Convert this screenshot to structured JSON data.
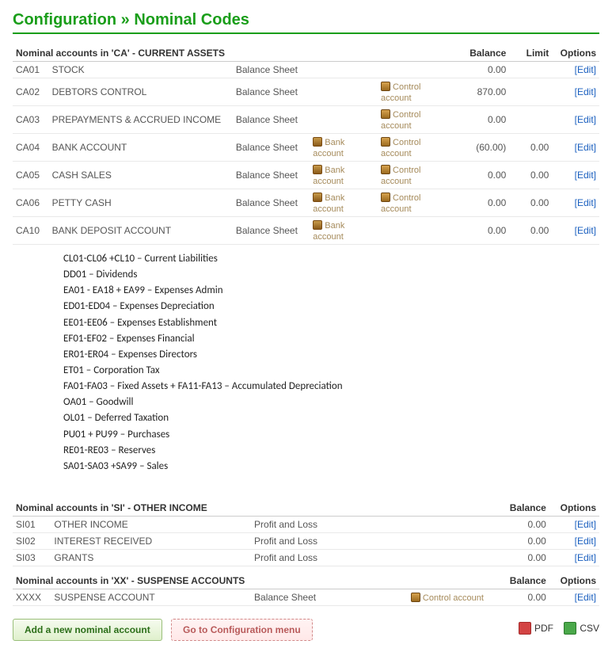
{
  "title_prefix": "Configuration",
  "title_sep": " » ",
  "title_page": "Nominal Codes",
  "headers": {
    "balance": "Balance",
    "limit": "Limit",
    "options": "Options",
    "edit": "[Edit]"
  },
  "tags": {
    "bank": "Bank account",
    "control": "Control account"
  },
  "sections": [
    {
      "heading": "Nominal accounts in 'CA' - CURRENT ASSETS",
      "show_limit": true,
      "rows": [
        {
          "code": "CA01",
          "name": "STOCK",
          "type": "Balance Sheet",
          "bank": false,
          "control": false,
          "balance": "0.00",
          "limit": ""
        },
        {
          "code": "CA02",
          "name": "DEBTORS CONTROL",
          "type": "Balance Sheet",
          "bank": false,
          "control": true,
          "balance": "870.00",
          "limit": ""
        },
        {
          "code": "CA03",
          "name": "PREPAYMENTS & ACCRUED INCOME",
          "type": "Balance Sheet",
          "bank": false,
          "control": true,
          "balance": "0.00",
          "limit": ""
        },
        {
          "code": "CA04",
          "name": "BANK ACCOUNT",
          "type": "Balance Sheet",
          "bank": true,
          "control": true,
          "balance": "(60.00)",
          "limit": "0.00",
          "negative": true
        },
        {
          "code": "CA05",
          "name": "CASH SALES",
          "type": "Balance Sheet",
          "bank": true,
          "control": true,
          "balance": "0.00",
          "limit": "0.00"
        },
        {
          "code": "CA06",
          "name": "PETTY CASH",
          "type": "Balance Sheet",
          "bank": true,
          "control": true,
          "balance": "0.00",
          "limit": "0.00"
        },
        {
          "code": "CA10",
          "name": "BANK DEPOSIT ACCOUNT",
          "type": "Balance Sheet",
          "bank": true,
          "control": false,
          "balance": "0.00",
          "limit": "0.00"
        }
      ]
    },
    {
      "heading": "Nominal accounts in 'SI' - OTHER INCOME",
      "show_limit": false,
      "rows": [
        {
          "code": "SI01",
          "name": "OTHER INCOME",
          "type": "Profit and Loss",
          "bank": false,
          "control": false,
          "balance": "0.00"
        },
        {
          "code": "SI02",
          "name": "INTEREST RECEIVED",
          "type": "Profit and Loss",
          "bank": false,
          "control": false,
          "balance": "0.00"
        },
        {
          "code": "SI03",
          "name": "GRANTS",
          "type": "Profit and Loss",
          "bank": false,
          "control": false,
          "balance": "0.00"
        }
      ]
    },
    {
      "heading": "Nominal accounts in 'XX' - SUSPENSE ACCOUNTS",
      "show_limit": false,
      "rows": [
        {
          "code": "XXXX",
          "name": "SUSPENSE ACCOUNT",
          "type": "Balance Sheet",
          "bank": false,
          "control": true,
          "balance": "0.00"
        }
      ]
    }
  ],
  "code_ranges": [
    "CL01-CL06 +CL10 – Current Liabilities",
    "DD01 – Dividends",
    "EA01 - EA18 + EA99 – Expenses Admin",
    "ED01-ED04 – Expenses Depreciation",
    "EE01-EE06 – Expenses Establishment",
    "EF01-EF02 – Expenses Financial",
    "ER01-ER04 – Expenses Directors",
    "ET01 – Corporation Tax",
    "FA01-FA03 – Fixed Assets + FA11-FA13 – Accumulated Depreciation",
    "OA01 – Goodwill",
    "OL01 – Deferred Taxation",
    "PU01 + PU99 – Purchases",
    "RE01-RE03 – Reserves",
    "SA01-SA03 +SA99 – Sales"
  ],
  "footer": {
    "add": "Add a new nominal account",
    "config": "Go to Configuration menu",
    "pdf": "PDF",
    "csv": "CSV"
  }
}
